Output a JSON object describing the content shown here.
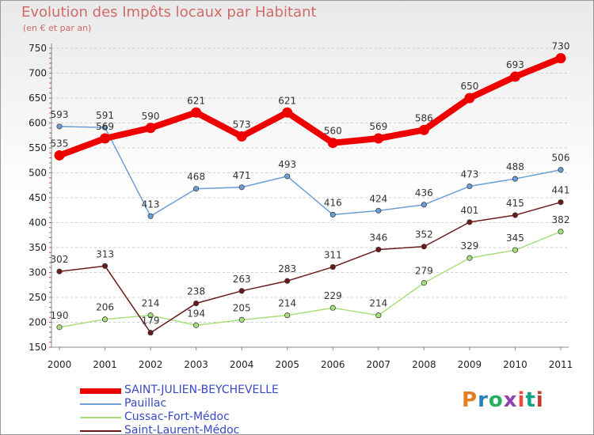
{
  "title": "Evolution des Impôts locaux par Habitant",
  "subtitle": "(en € et par an)",
  "logo": {
    "text": "Proxiti",
    "colors": [
      "#e67e22",
      "#2980b9",
      "#27ae60",
      "#8e44ad",
      "#e74c3c",
      "#16a085",
      "#c0392b"
    ]
  },
  "chart_data": {
    "type": "line",
    "x": [
      "2000",
      "2001",
      "2002",
      "2003",
      "2004",
      "2005",
      "2006",
      "2007",
      "2008",
      "2009",
      "2010",
      "2011"
    ],
    "ylim": [
      150,
      750
    ],
    "yticks": [
      150,
      200,
      250,
      300,
      350,
      400,
      450,
      500,
      550,
      600,
      650,
      700,
      750
    ],
    "grid": "horizontal dashed",
    "legend_position": "bottom-left",
    "series": [
      {
        "name": "SAINT-JULIEN-BEYCHEVELLE",
        "color": "#ee0000",
        "values": [
          535,
          569,
          590,
          621,
          573,
          621,
          560,
          569,
          586,
          650,
          693,
          730
        ],
        "labels": [
          "535",
          "569",
          "590",
          "621",
          "573",
          "621",
          "560",
          "569",
          "586",
          "650",
          "693",
          "730"
        ]
      },
      {
        "name": "Pauillac",
        "color": "#6a9ed6",
        "values": [
          593,
          591,
          413,
          468,
          471,
          493,
          416,
          424,
          436,
          473,
          488,
          506
        ],
        "labels": [
          "593",
          "591",
          "413",
          "468",
          "471",
          "493",
          "416",
          "424",
          "436",
          "473",
          "488",
          "506"
        ]
      },
      {
        "name": "Cussac-Fort-Médoc",
        "color": "#a6e07e",
        "values": [
          190,
          206,
          214,
          194,
          205,
          214,
          229,
          214,
          279,
          329,
          345,
          382
        ],
        "labels": [
          "190",
          "206",
          "214",
          "194",
          "205",
          "214",
          "229",
          "214",
          "279",
          "329",
          "345",
          "382"
        ]
      },
      {
        "name": "Saint-Laurent-Médoc",
        "color": "#6b1a1a",
        "values": [
          302,
          313,
          179,
          238,
          263,
          283,
          311,
          346,
          352,
          401,
          415,
          441
        ],
        "labels": [
          "302",
          "313",
          "179",
          "238",
          "263",
          "283",
          "311",
          "346",
          "352",
          "401",
          "415",
          "441"
        ]
      }
    ]
  }
}
